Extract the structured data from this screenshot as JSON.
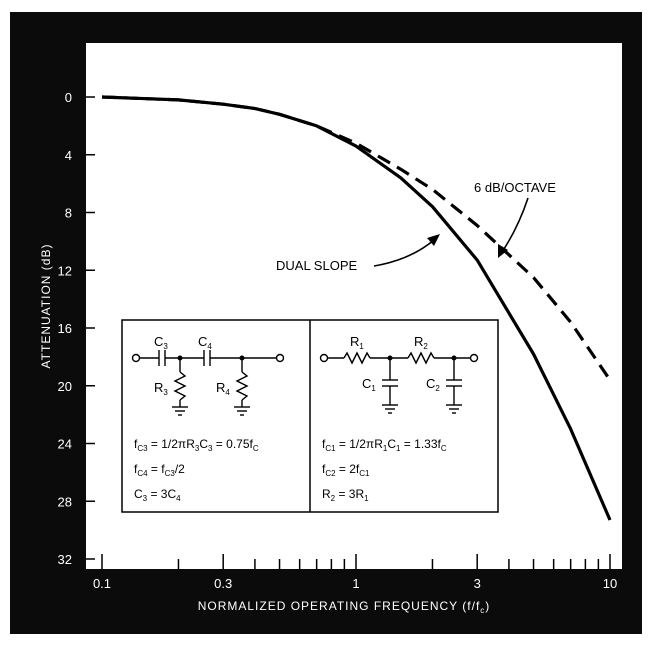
{
  "chart_data": {
    "type": "line",
    "xlabel": "NORMALIZED OPERATING FREQUENCY (f/f",
    "xlabel_sub": "c",
    "xlabel_close": ")",
    "ylabel": "ATTENUATION (dB)",
    "x_scale": "log",
    "xlim": [
      0.1,
      10
    ],
    "ylim": [
      0,
      32
    ],
    "y_inverted": true,
    "x_tick_labels": [
      {
        "value": 0.1,
        "label": "0.1"
      },
      {
        "value": 0.3,
        "label": "0.3"
      },
      {
        "value": 1,
        "label": "1"
      },
      {
        "value": 3,
        "label": "3"
      },
      {
        "value": 10,
        "label": "10"
      }
    ],
    "y_ticks": [
      0,
      4,
      8,
      12,
      16,
      20,
      24,
      28,
      32
    ],
    "grid": false,
    "series": [
      {
        "name": "DUAL SLOPE",
        "style": "solid",
        "x": [
          0.1,
          0.2,
          0.3,
          0.4,
          0.5,
          0.7,
          1,
          1.5,
          2,
          3,
          5,
          7,
          10
        ],
        "y": [
          0,
          0.2,
          0.5,
          0.8,
          1.2,
          2.0,
          3.4,
          5.6,
          7.6,
          11.3,
          17.8,
          23.0,
          29.3
        ]
      },
      {
        "name": "6 dB/OCTAVE",
        "style": "dashed",
        "x": [
          0.1,
          0.2,
          0.3,
          0.4,
          0.5,
          0.7,
          1,
          1.5,
          2,
          3,
          5,
          7,
          10
        ],
        "y": [
          0,
          0.2,
          0.5,
          0.8,
          1.2,
          2.0,
          3.2,
          5.0,
          6.4,
          8.9,
          12.5,
          15.6,
          19.6
        ]
      }
    ],
    "annotations": [
      {
        "text": "DUAL SLOPE",
        "target_series": 0
      },
      {
        "text": "6 dB/OCTAVE",
        "target_series": 1
      }
    ]
  },
  "inset": {
    "highpass": {
      "c3": "C",
      "c3_sub": "3",
      "c4": "C",
      "c4_sub": "4",
      "r3": "R",
      "r3_sub": "3",
      "r4": "R",
      "r4_sub": "4",
      "eq1": {
        "a": "f",
        "a_sub": "C3",
        "b": " = 1/2πR",
        "b_sub": "3",
        "c": "C",
        "c_sub": "3",
        "d": " = 0.75f",
        "d_sub": "C"
      },
      "eq2": {
        "a": "f",
        "a_sub": "C4",
        "b": " = f",
        "b_sub": "C3",
        "c": "/2"
      },
      "eq3": {
        "a": "C",
        "a_sub": "3",
        "b": " = 3C",
        "b_sub": "4"
      }
    },
    "lowpass": {
      "r1": "R",
      "r1_sub": "1",
      "r2": "R",
      "r2_sub": "2",
      "c1": "C",
      "c1_sub": "1",
      "c2": "C",
      "c2_sub": "2",
      "eq1": {
        "a": "f",
        "a_sub": "C1",
        "b": " = 1/2πR",
        "b_sub": "1",
        "c": "C",
        "c_sub": "1",
        "d": " = 1.33f",
        "d_sub": "C"
      },
      "eq2": {
        "a": "f",
        "a_sub": "C2",
        "b": " = 2f",
        "b_sub": "C1"
      },
      "eq3": {
        "a": "R",
        "a_sub": "2",
        "b": " = 3R",
        "b_sub": "1"
      }
    }
  },
  "colors": {
    "background": "#0b0b0b",
    "plot": "#ffffff",
    "ink": "#000000"
  }
}
